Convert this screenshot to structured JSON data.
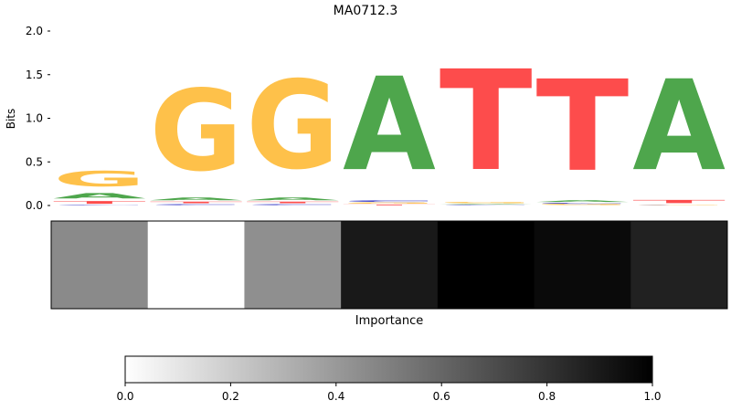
{
  "chart_data": {
    "type": "sequence-logo-with-heatmap",
    "title": "MA0712.3",
    "logo": {
      "ylabel": "Bits",
      "ylim": [
        0,
        2.0
      ],
      "yticks": [
        0.0,
        0.5,
        1.0,
        1.5,
        2.0
      ],
      "ytick_labels": [
        "0.0",
        "0.5",
        "1.0",
        "1.5",
        "2.0"
      ],
      "positions": [
        [
          {
            "base": "C",
            "bits": 0.01
          },
          {
            "base": "T",
            "bits": 0.05
          },
          {
            "base": "A",
            "bits": 0.1
          },
          {
            "base": "G",
            "bits": 0.28
          }
        ],
        [
          {
            "base": "C",
            "bits": 0.02
          },
          {
            "base": "T",
            "bits": 0.03
          },
          {
            "base": "A",
            "bits": 0.05
          },
          {
            "base": "G",
            "bits": 1.5
          }
        ],
        [
          {
            "base": "C",
            "bits": 0.02
          },
          {
            "base": "T",
            "bits": 0.03
          },
          {
            "base": "A",
            "bits": 0.05
          },
          {
            "base": "G",
            "bits": 1.63
          }
        ],
        [
          {
            "base": "T",
            "bits": 0.015
          },
          {
            "base": "G",
            "bits": 0.02
          },
          {
            "base": "C",
            "bits": 0.03
          },
          {
            "base": "A",
            "bits": 1.72
          }
        ],
        [
          {
            "base": "C",
            "bits": 0.01
          },
          {
            "base": "A",
            "bits": 0.01
          },
          {
            "base": "G",
            "bits": 0.02
          },
          {
            "base": "T",
            "bits": 1.85
          }
        ],
        [
          {
            "base": "G",
            "bits": 0.015
          },
          {
            "base": "C",
            "bits": 0.02
          },
          {
            "base": "A",
            "bits": 0.03
          },
          {
            "base": "T",
            "bits": 1.68
          }
        ],
        [
          {
            "base": "C",
            "bits": 0.005
          },
          {
            "base": "G",
            "bits": 0.01
          },
          {
            "base": "T",
            "bits": 0.06
          },
          {
            "base": "A",
            "bits": 1.67
          }
        ]
      ]
    },
    "heatmap": {
      "xlabel": "Importance",
      "values": [
        0.46,
        0.0,
        0.44,
        0.9,
        1.0,
        0.96,
        0.87
      ]
    },
    "colorbar": {
      "range": [
        0.0,
        1.0
      ],
      "ticks": [
        0.0,
        0.2,
        0.4,
        0.6,
        0.8,
        1.0
      ],
      "tick_labels": [
        "0.0",
        "0.2",
        "0.4",
        "0.6",
        "0.8",
        "1.0"
      ],
      "colormap": "Greys",
      "low_color": "#ffffff",
      "high_color": "#000000"
    },
    "base_colors": {
      "A": "#4ea64c",
      "C": "#4b4dcc",
      "G": "#fec14a",
      "T": "#fd4c4c"
    }
  }
}
